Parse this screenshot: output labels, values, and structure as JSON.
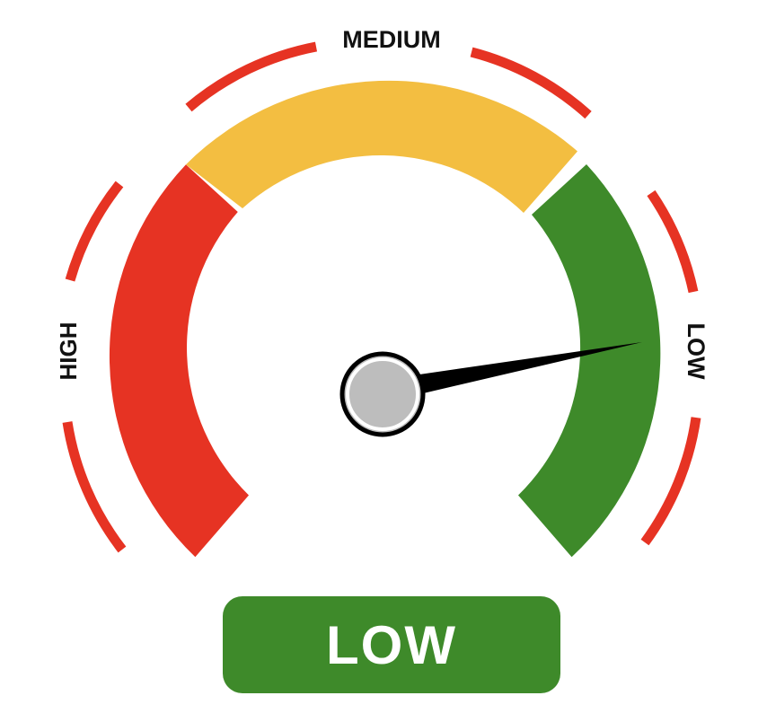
{
  "gauge": {
    "labels": {
      "high": "HIGH",
      "medium": "MEDIUM",
      "low": "LOW"
    },
    "status_text": "LOW",
    "level": 0.92,
    "colors": {
      "high": "#e63323",
      "medium": "#f3be41",
      "low": "#3e8a2a",
      "ticks": "#e63323",
      "needle": "#000000",
      "hub": "#bdbdbd",
      "status_panel": "#3e8a2a",
      "status_text": "#ffffff"
    }
  }
}
